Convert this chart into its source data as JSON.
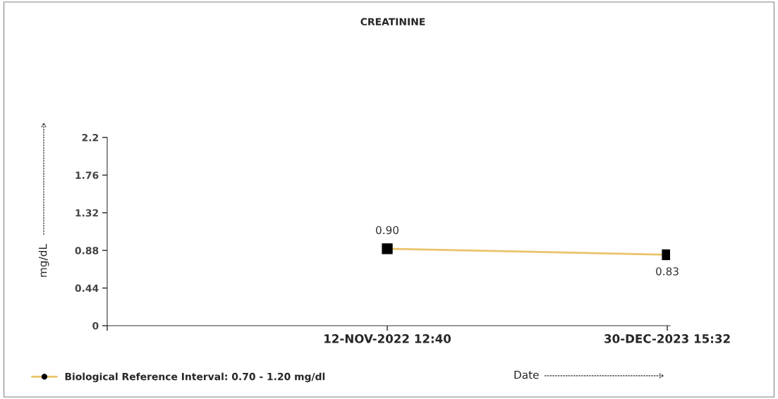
{
  "chart_data": {
    "type": "line",
    "title": "CREATININE",
    "xlabel": "Date",
    "ylabel": "mg/dL",
    "categories": [
      null,
      "12-NOV-2022 12:40",
      "30-DEC-2023 15:32"
    ],
    "series": [
      {
        "name": "Biological Reference Interval: 0.70 - 1.20 mg/dl",
        "color": "#e8c46a",
        "values": [
          null,
          0.9,
          0.83
        ],
        "value_labels": [
          null,
          "0.90",
          "0.83"
        ]
      }
    ],
    "ylim": [
      0,
      2.2
    ],
    "yticks": [
      0,
      0.44,
      0.88,
      1.32,
      1.76,
      2.2
    ],
    "marker": "square",
    "line_style": "solid",
    "grid": false,
    "legend": "bottom left"
  }
}
